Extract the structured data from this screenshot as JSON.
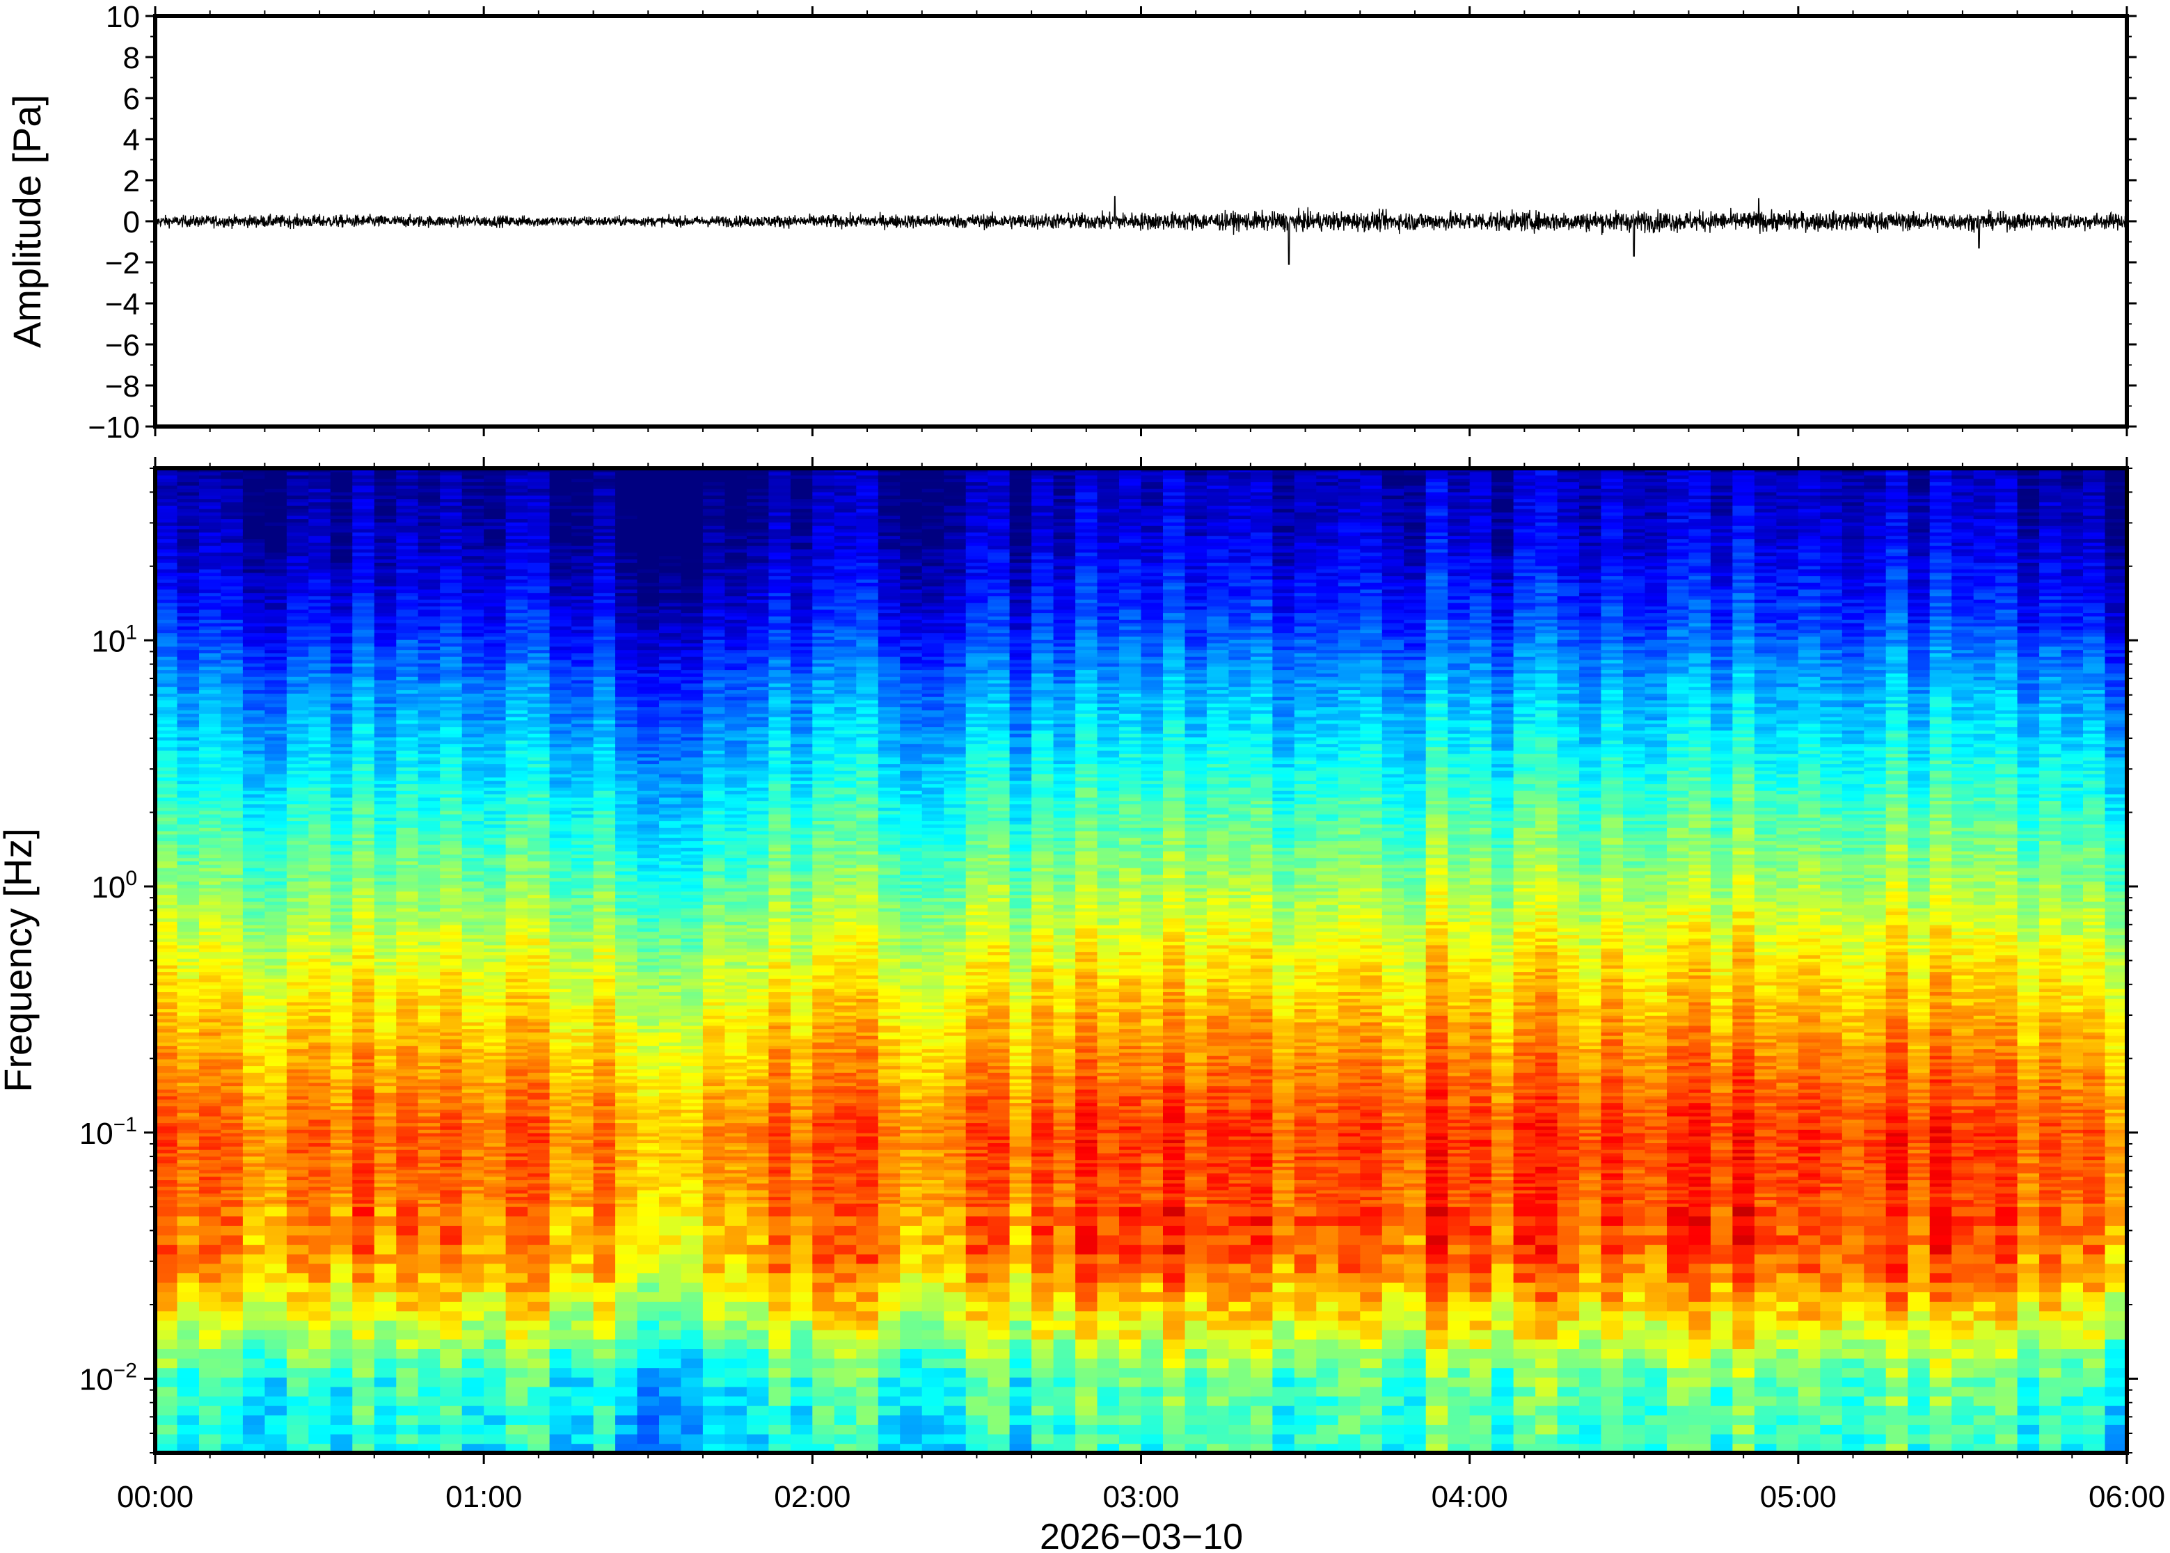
{
  "chart_data": [
    {
      "type": "line",
      "panel": "waveform",
      "ylabel": "Amplitude [Pa]",
      "ylim": [
        -10,
        10
      ],
      "yticks": [
        "10",
        "8",
        "6",
        "4",
        "2",
        "0",
        "−2",
        "−4",
        "−6",
        "−8",
        "−10"
      ],
      "ytick_values": [
        10,
        8,
        6,
        4,
        2,
        0,
        -2,
        -4,
        -6,
        -8,
        -10
      ],
      "xlim": [
        "2026-03-10 00:00",
        "2026-03-10 06:00"
      ],
      "series": [
        {
          "color": "#000000",
          "envelope_x_hours": [
            0.0,
            0.5,
            1.0,
            1.5,
            2.0,
            2.5,
            3.0,
            3.5,
            4.0,
            4.5,
            5.0,
            5.5,
            6.0
          ],
          "envelope_amplitude_pa": [
            0.35,
            0.4,
            0.35,
            0.3,
            0.4,
            0.45,
            0.55,
            0.6,
            0.6,
            0.65,
            0.6,
            0.55,
            0.5
          ],
          "spikes": [
            {
              "x_hours": 2.92,
              "y": 1.2
            },
            {
              "x_hours": 3.45,
              "y": -2.1
            },
            {
              "x_hours": 4.5,
              "y": -1.7
            },
            {
              "x_hours": 4.88,
              "y": 1.1
            },
            {
              "x_hours": 5.55,
              "y": -1.3
            }
          ]
        }
      ]
    },
    {
      "type": "heatmap",
      "panel": "spectrogram",
      "ylabel": "Frequency [Hz]",
      "yscale": "log",
      "ylim": [
        0.005,
        50
      ],
      "yticks": [
        {
          "base": "10",
          "exp": "1",
          "value": 10
        },
        {
          "base": "10",
          "exp": "0",
          "value": 1
        },
        {
          "base": "10",
          "exp": "−1",
          "value": 0.1
        },
        {
          "base": "10",
          "exp": "−2",
          "value": 0.01
        }
      ],
      "colormap": "jet",
      "xlim": [
        "2026-03-10 00:00",
        "2026-03-10 06:00"
      ],
      "xticks": [
        "00:00",
        "01:00",
        "02:00",
        "03:00",
        "04:00",
        "05:00",
        "06:00"
      ],
      "xlabel": "2026−03−10",
      "description_bands": [
        {
          "freq_range_hz": [
            10,
            50
          ],
          "level": "low"
        },
        {
          "freq_range_hz": [
            0.3,
            3
          ],
          "level": "medium-high"
        },
        {
          "freq_range_hz": [
            0.03,
            0.2
          ],
          "level": "high"
        },
        {
          "freq_range_hz": [
            0.005,
            0.02
          ],
          "level": "medium-low"
        }
      ]
    }
  ]
}
